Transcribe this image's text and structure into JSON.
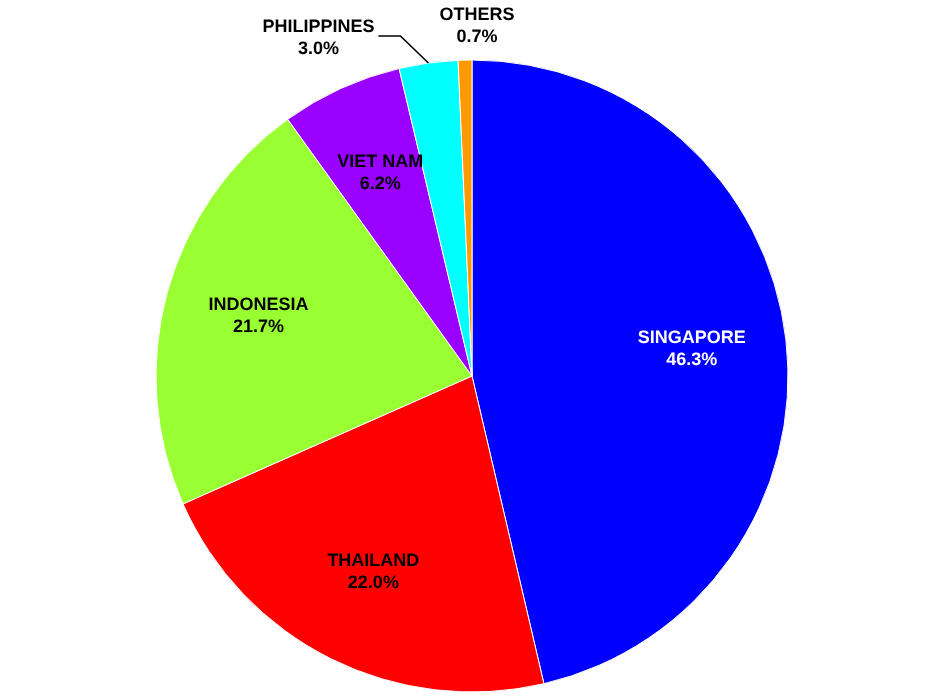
{
  "chart_data": {
    "type": "pie",
    "categories": [
      "SINGAPORE",
      "THAILAND",
      "INDONESIA",
      "VIET  NAM",
      "PHILIPPINES",
      "OTHERS"
    ],
    "values": [
      46.3,
      22.0,
      21.7,
      6.2,
      3.0,
      0.7
    ],
    "value_labels": [
      "46.3%",
      "22.0%",
      "21.7%",
      "6.2%",
      "3.0%",
      "0.7%"
    ],
    "colors": [
      "#0000ff",
      "#ff0000",
      "#99ff33",
      "#9900ff",
      "#00ffff",
      "#ff9900"
    ]
  }
}
